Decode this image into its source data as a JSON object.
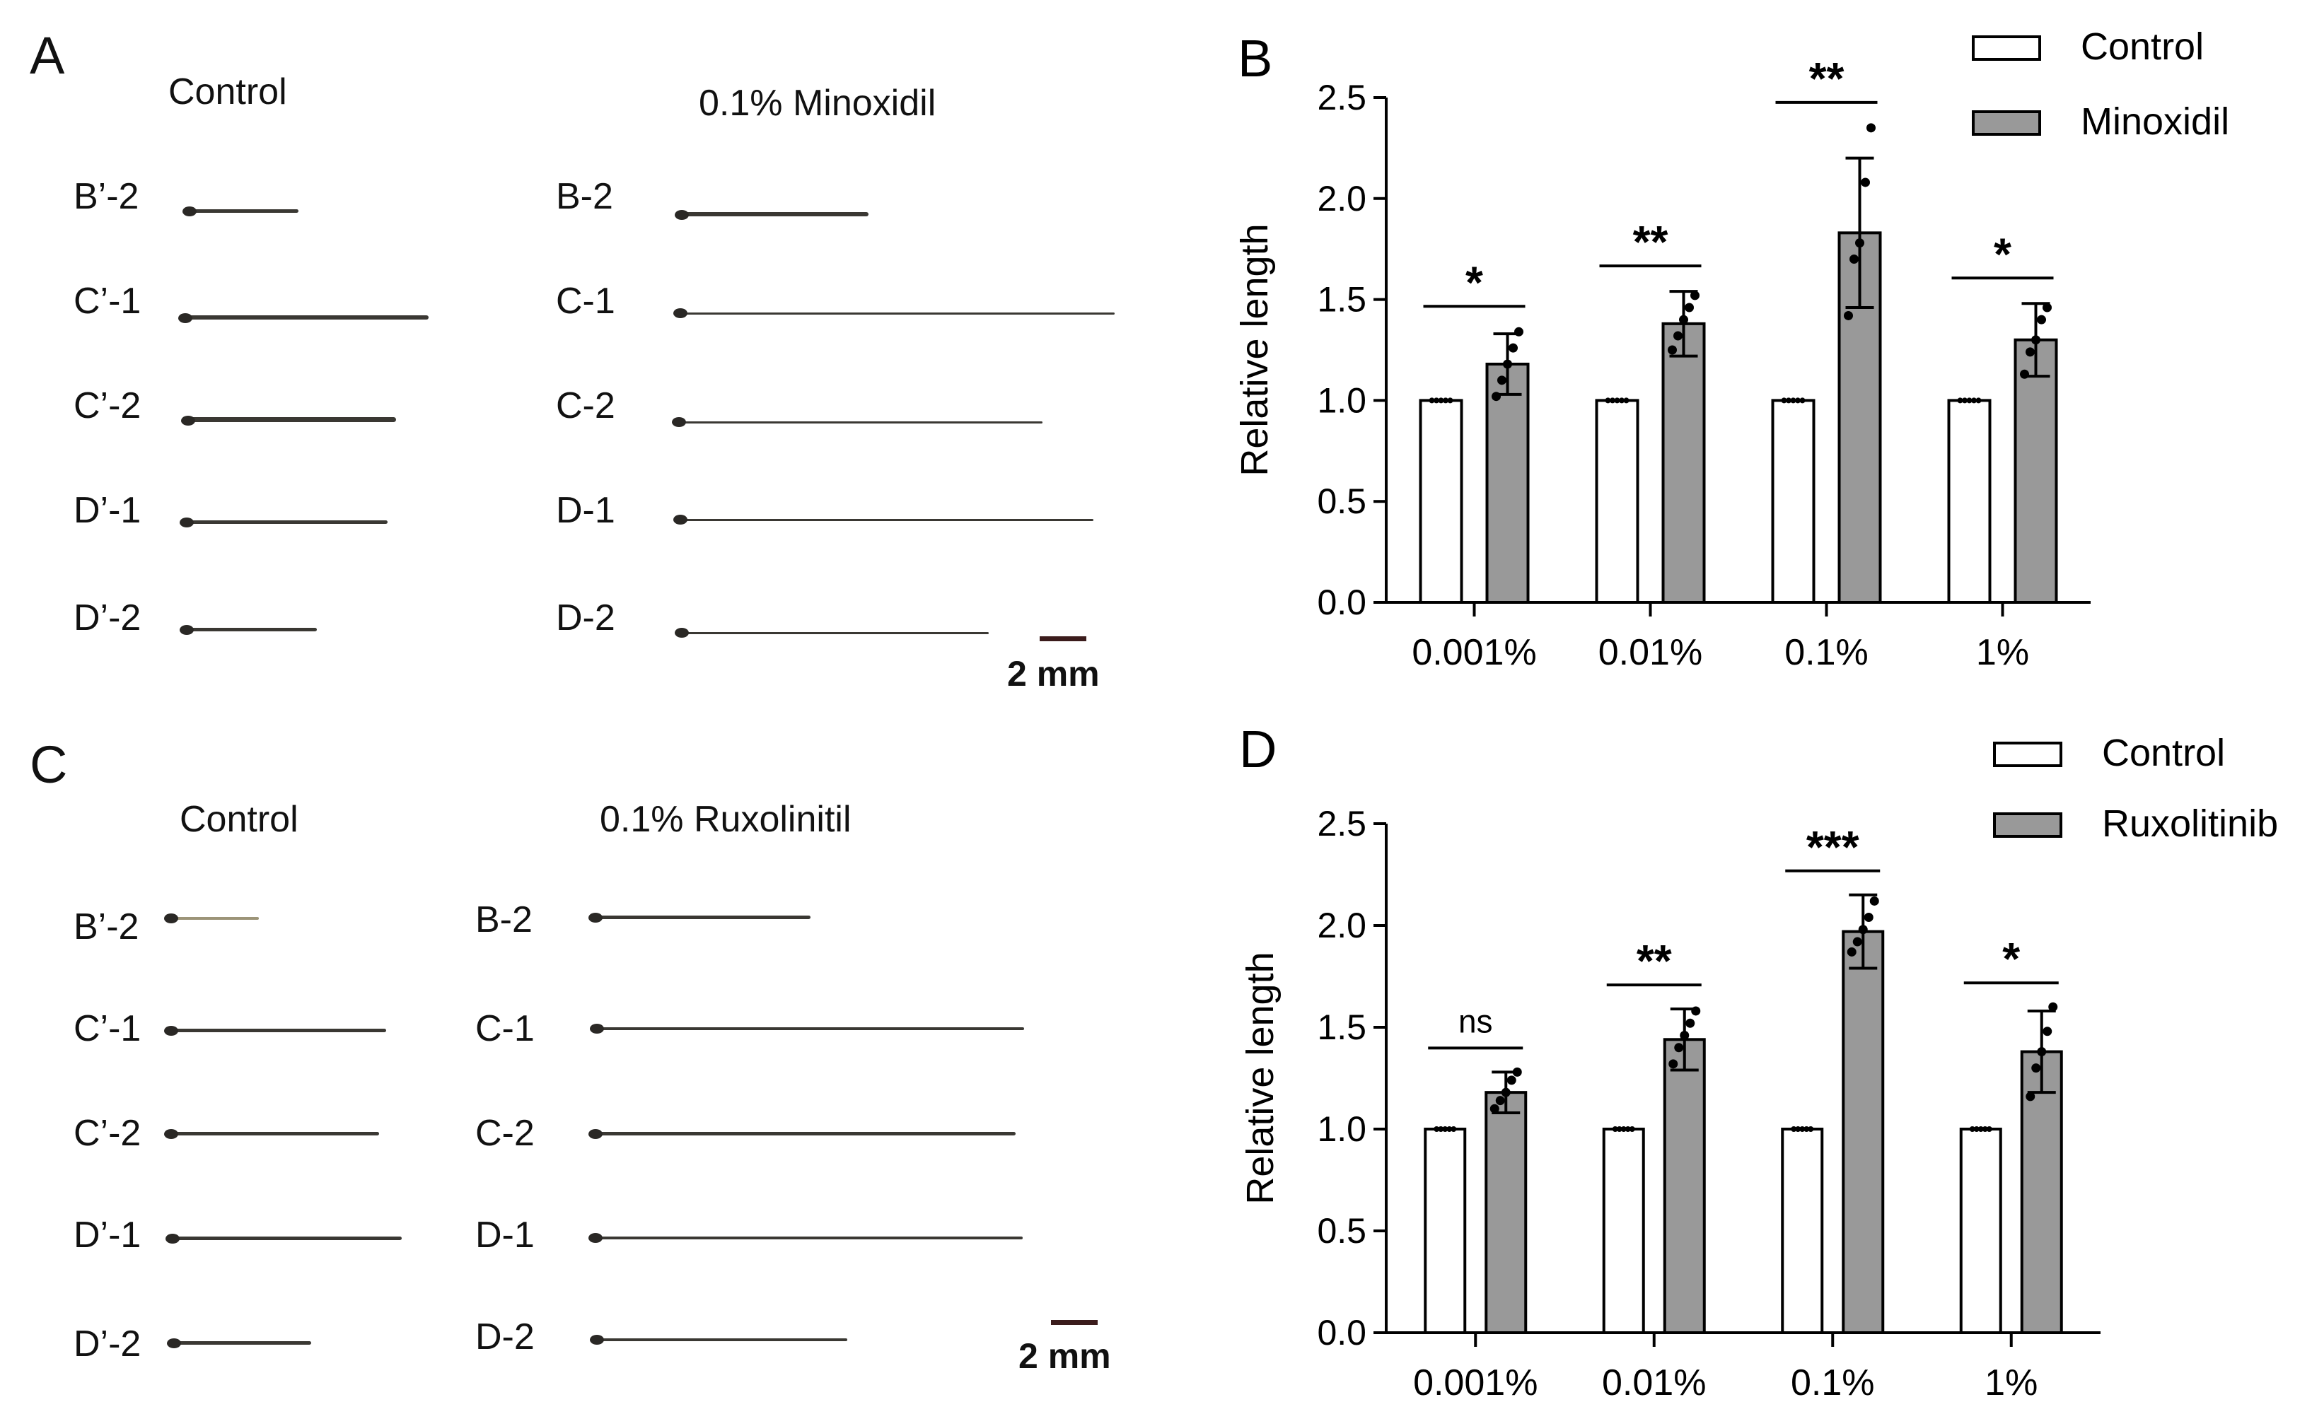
{
  "panelA": {
    "letter": "A",
    "control_title": "Control",
    "treated_title": "0.1% Minoxidil",
    "control_rows": [
      "B’-2",
      "C’-1",
      "C’-2",
      "D’-1",
      "D’-2"
    ],
    "treated_rows": [
      "B-2",
      "C-1",
      "C-2",
      "D-1",
      "D-2"
    ],
    "scale_label": "2 mm"
  },
  "panelC": {
    "letter": "C",
    "control_title": "Control",
    "treated_title": "0.1% Ruxolinitil",
    "control_rows": [
      "B’-2",
      "C’-1",
      "C’-2",
      "D’-1",
      "D’-2"
    ],
    "treated_rows": [
      "B-2",
      "C-1",
      "C-2",
      "D-1",
      "D-2"
    ],
    "scale_label": "2 mm"
  },
  "colors": {
    "control": "#ffffff",
    "treated": "#999999",
    "stroke": "#000000"
  },
  "chart_data": [
    {
      "panel": "B",
      "type": "bar",
      "ylabel": "Relative length",
      "xlabel": "",
      "ylim": [
        0,
        2.5
      ],
      "yticks": [
        "0.0",
        "0.5",
        "1.0",
        "1.5",
        "2.0",
        "2.5"
      ],
      "categories": [
        "0.001%",
        "0.01%",
        "0.1%",
        "1%"
      ],
      "series": [
        {
          "name": "Control",
          "values": [
            1.0,
            1.0,
            1.0,
            1.0
          ],
          "sd": [
            0,
            0,
            0,
            0
          ]
        },
        {
          "name": "Minoxidil",
          "values": [
            1.18,
            1.38,
            1.83,
            1.3
          ],
          "sd": [
            0.15,
            0.16,
            0.37,
            0.18
          ],
          "points": [
            [
              1.02,
              1.1,
              1.18,
              1.26,
              1.34
            ],
            [
              1.25,
              1.32,
              1.4,
              1.46,
              1.52
            ],
            [
              1.42,
              1.7,
              1.78,
              2.08,
              2.35
            ],
            [
              1.13,
              1.24,
              1.3,
              1.4,
              1.46
            ]
          ]
        }
      ],
      "significance": [
        "*",
        "**",
        "**",
        "*"
      ],
      "legend": [
        "Control",
        "Minoxidil"
      ]
    },
    {
      "panel": "D",
      "type": "bar",
      "ylabel": "Relative length",
      "xlabel": "",
      "ylim": [
        0,
        2.5
      ],
      "yticks": [
        "0.0",
        "0.5",
        "1.0",
        "1.5",
        "2.0",
        "2.5"
      ],
      "categories": [
        "0.001%",
        "0.01%",
        "0.1%",
        "1%"
      ],
      "series": [
        {
          "name": "Control",
          "values": [
            1.0,
            1.0,
            1.0,
            1.0
          ],
          "sd": [
            0,
            0,
            0,
            0
          ]
        },
        {
          "name": "Ruxolitinib",
          "values": [
            1.18,
            1.44,
            1.97,
            1.38
          ],
          "sd": [
            0.1,
            0.15,
            0.18,
            0.2
          ],
          "points": [
            [
              1.1,
              1.14,
              1.18,
              1.24,
              1.28
            ],
            [
              1.32,
              1.4,
              1.46,
              1.52,
              1.58
            ],
            [
              1.87,
              1.92,
              1.98,
              2.04,
              2.12
            ],
            [
              1.16,
              1.3,
              1.38,
              1.48,
              1.6
            ]
          ]
        }
      ],
      "significance": [
        "ns",
        "**",
        "***",
        "*"
      ],
      "legend": [
        "Control",
        "Ruxolitinib"
      ]
    }
  ]
}
